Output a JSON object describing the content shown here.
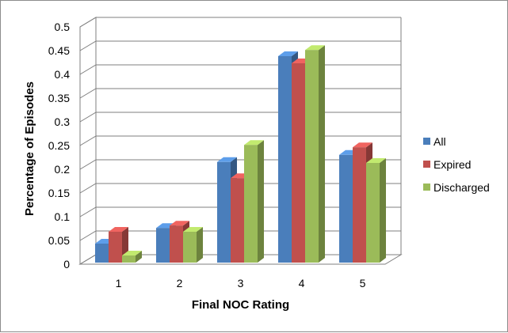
{
  "chart_data": {
    "type": "bar",
    "xlabel": "Final NOC Rating",
    "ylabel": "Percentage of Episodes",
    "categories": [
      "1",
      "2",
      "3",
      "4",
      "5"
    ],
    "ylim": [
      0,
      0.5
    ],
    "yticks": [
      "0",
      "0.05",
      "0.1",
      "0.15",
      "0.2",
      "0.25",
      "0.3",
      "0.35",
      "0.4",
      "0.45",
      "0.5"
    ],
    "grid": true,
    "legend_position": "right",
    "series": [
      {
        "name": "All",
        "color": "#4a7ebb",
        "values": [
          0.04,
          0.073,
          0.212,
          0.435,
          0.227
        ]
      },
      {
        "name": "Expired",
        "color": "#c0504d",
        "values": [
          0.065,
          0.078,
          0.178,
          0.42,
          0.243
        ]
      },
      {
        "name": "Discharged",
        "color": "#9bbb59",
        "values": [
          0.015,
          0.065,
          0.248,
          0.448,
          0.21
        ]
      }
    ]
  }
}
